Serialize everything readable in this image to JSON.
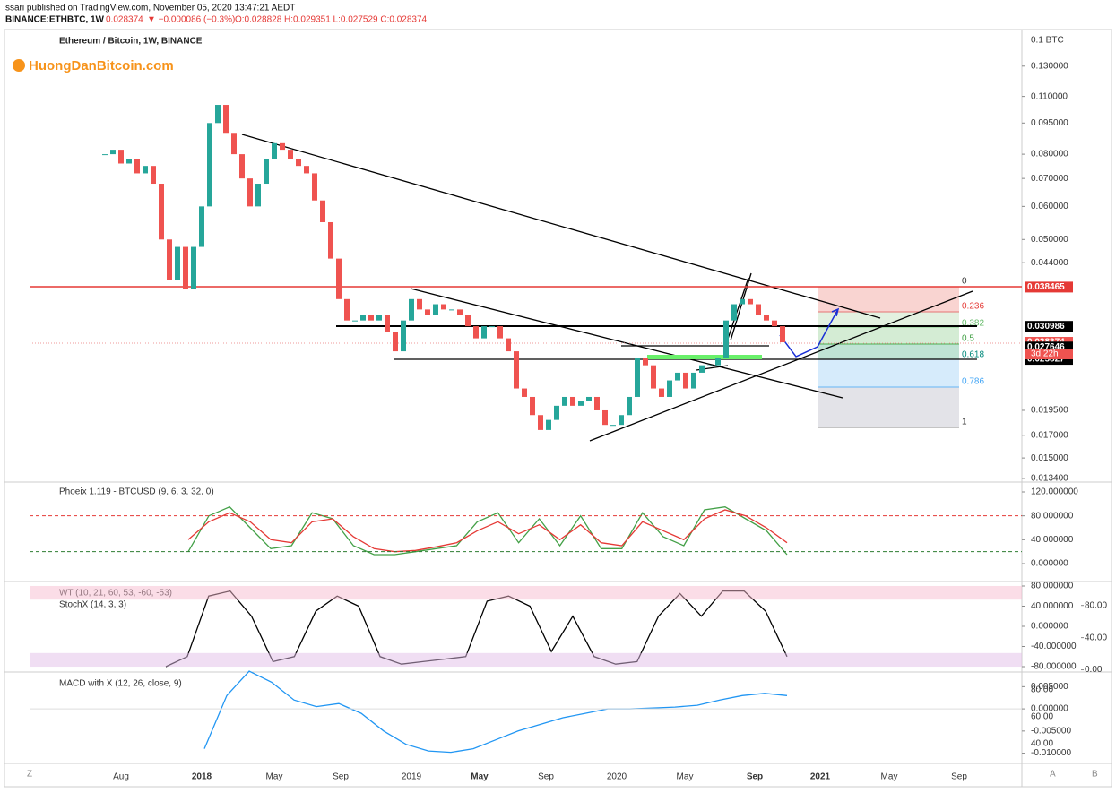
{
  "header": {
    "publisher": "ssari published on TradingView.com, November 05, 2020 13:47:21 AEDT",
    "symbol": "BINANCE:ETHBTC, 1W",
    "last": "0.028374",
    "change": "▼ −0.000086 (−0.3%)",
    "ohlc": "O:0.028828 H:0.029351 L:0.027529 C:0.028374"
  },
  "logo": "HuongDanBitcoin.com",
  "chart_data": {
    "type": "candlestick",
    "title": "Ethereum / Bitcoin, 1W, BINANCE",
    "unit": "0.1 BTC",
    "log_scale": true,
    "up_color": "#26a69a",
    "down_color": "#ef5350",
    "close": [
      0.08,
      0.082,
      0.076,
      0.078,
      0.072,
      0.075,
      0.068,
      0.05,
      0.04,
      0.048,
      0.038,
      0.048,
      0.06,
      0.095,
      0.105,
      0.09,
      0.08,
      0.07,
      0.06,
      0.068,
      0.078,
      0.085,
      0.082,
      0.078,
      0.075,
      0.072,
      0.062,
      0.055,
      0.045,
      0.036,
      0.032,
      0.032,
      0.033,
      0.032,
      0.033,
      0.03,
      0.027,
      0.032,
      0.036,
      0.034,
      0.033,
      0.035,
      0.034,
      0.034,
      0.033,
      0.031,
      0.029,
      0.031,
      0.031,
      0.029,
      0.027,
      0.022,
      0.021,
      0.019,
      0.0175,
      0.0185,
      0.02,
      0.021,
      0.02,
      0.0205,
      0.021,
      0.0195,
      0.018,
      0.018,
      0.019,
      0.021,
      0.026,
      0.025,
      0.022,
      0.021,
      0.023,
      0.024,
      0.022,
      0.024,
      0.025,
      0.025,
      0.026,
      0.032,
      0.035,
      0.036,
      0.035,
      0.033,
      0.032,
      0.031,
      0.028374
    ],
    "ylim": [
      0.0132,
      0.159
    ],
    "yticks": [
      {
        "value": 0.13,
        "label": "0.130000"
      },
      {
        "value": 0.11,
        "label": "0.110000"
      },
      {
        "value": 0.095,
        "label": "0.095000"
      },
      {
        "value": 0.08,
        "label": "0.080000"
      },
      {
        "value": 0.07,
        "label": "0.070000"
      },
      {
        "value": 0.06,
        "label": "0.060000"
      },
      {
        "value": 0.05,
        "label": "0.050000"
      },
      {
        "value": 0.044,
        "label": "0.044000"
      },
      {
        "value": 0.0195,
        "label": "0.019500"
      },
      {
        "value": 0.017,
        "label": "0.017000"
      },
      {
        "value": 0.015,
        "label": "0.015000"
      },
      {
        "value": 0.0134,
        "label": "0.013400"
      }
    ],
    "price_labels": [
      {
        "value": 0.038465,
        "label": "0.038465",
        "color": "#e53935"
      },
      {
        "value": 0.030986,
        "label": "0.030986",
        "color": "#000000"
      },
      {
        "value": 0.028374,
        "label": "0.028374",
        "color": "#ef5350"
      },
      {
        "value": 0.027646,
        "label": "0.027646",
        "color": "#000000"
      },
      {
        "value": 0.025827,
        "label": "0.025827",
        "color": "#000000"
      }
    ],
    "countdown": "3d 22h",
    "xtick_labels": [
      "Aug",
      "2018",
      "May",
      "Sep",
      "2019",
      "May",
      "Sep",
      "2020",
      "May",
      "Sep",
      "2021",
      "May",
      "Sep"
    ],
    "fib_labels": [
      "0",
      "0.236",
      "0.382",
      "0.5",
      "0.618",
      "0.786",
      "1"
    ]
  },
  "phoeix": {
    "title": "Phoeix 1.119 - BTCUSD (9, 6, 3, 32, 0)",
    "ylim": [
      -28.5,
      133.5
    ],
    "yticks": [
      {
        "value": 120,
        "label": "120.000000"
      },
      {
        "value": 80,
        "label": "80.000000"
      },
      {
        "value": 40,
        "label": "40.000000"
      },
      {
        "value": 0,
        "label": "0.000000"
      }
    ],
    "series": [
      {
        "color": "#43a047",
        "values": [
          20,
          80,
          95,
          60,
          25,
          30,
          85,
          75,
          30,
          15,
          15,
          20,
          25,
          30,
          70,
          85,
          35,
          75,
          30,
          80,
          25,
          25,
          85,
          45,
          30,
          90,
          95,
          75,
          55,
          15
        ]
      },
      {
        "color": "#e53935",
        "values": [
          40,
          70,
          85,
          70,
          40,
          35,
          70,
          75,
          45,
          25,
          20,
          22,
          28,
          35,
          55,
          70,
          50,
          65,
          40,
          65,
          35,
          30,
          70,
          55,
          40,
          75,
          90,
          80,
          60,
          35
        ]
      }
    ]
  },
  "wt": {
    "title": "WT (10, 21, 60, 53, -60, -53)",
    "title2": "StochX (14, 3, 3)",
    "ylim": [
      -87.1,
      87.1
    ],
    "yticks": [
      {
        "value": 80,
        "label": "80.000000"
      },
      {
        "value": 40,
        "label": "40.000000"
      },
      {
        "value": 0,
        "label": "0.000000"
      },
      {
        "value": -40,
        "label": "-40.000000"
      },
      {
        "value": -80,
        "label": "-80.000000"
      }
    ],
    "y2lim": [
      -0.5,
      108.6
    ],
    "y2ticks": [
      {
        "value": 80,
        "label": "80.00"
      },
      {
        "value": 40,
        "label": "40.00"
      },
      {
        "value": 0,
        "label": "0.00"
      }
    ],
    "series": [
      {
        "color": "#000000",
        "values": [
          -80,
          -60,
          60,
          70,
          20,
          -70,
          -60,
          30,
          60,
          40,
          -60,
          -75,
          -70,
          -65,
          -60,
          50,
          60,
          40,
          -50,
          20,
          -60,
          -75,
          -70,
          20,
          65,
          20,
          70,
          70,
          30,
          -60
        ]
      }
    ]
  },
  "macd": {
    "title": "MACD with X (12, 26, close, 9)",
    "ylim": [
      -0.0119,
      0.0079
    ],
    "yticks": [
      {
        "value": 0.005,
        "label": "0.005000"
      },
      {
        "value": 0,
        "label": "0.000000"
      },
      {
        "value": -0.005,
        "label": "-0.005000"
      },
      {
        "value": -0.01,
        "label": "-0.010000"
      }
    ],
    "y2ticks": [
      "80.00",
      "60.00",
      "40.00"
    ],
    "series": [
      {
        "color": "#2196f3",
        "values": [
          -0.009,
          0.003,
          0.0085,
          0.006,
          0.002,
          0.0005,
          0.0012,
          -0.001,
          -0.005,
          -0.008,
          -0.0095,
          -0.0098,
          -0.009,
          -0.007,
          -0.005,
          -0.0035,
          -0.002,
          -0.001,
          0,
          0,
          0.0002,
          0.0004,
          0.0008,
          0.002,
          0.003,
          0.0035,
          0.003
        ]
      }
    ]
  },
  "footer": {
    "left": "Z",
    "right1": "A",
    "right2": "B"
  }
}
